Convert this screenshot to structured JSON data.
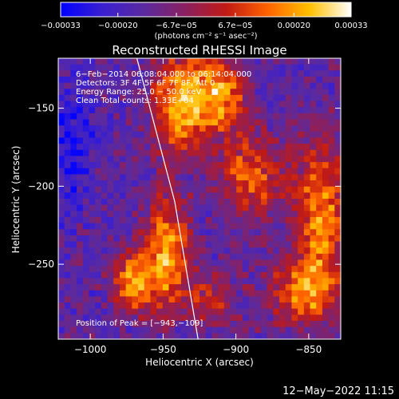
{
  "chart_data": {
    "type": "heatmap",
    "title": "Reconstructed RHESSI Image",
    "xlabel": "Heliocentric X (arcsec)",
    "ylabel": "Heliocentric Y (arcsec)",
    "xlim": [
      -1022,
      -828
    ],
    "ylim": [
      -298,
      -118
    ],
    "x_ticks": [
      -1000,
      -950,
      -900,
      -850
    ],
    "x_tick_labels": [
      "−1000",
      "−950",
      "−900",
      "−850"
    ],
    "y_ticks": [
      -150,
      -200,
      -250
    ],
    "y_tick_labels": [
      "−150",
      "−200",
      "−250"
    ],
    "colorbar": {
      "range": [
        -0.00033,
        0.00033
      ],
      "ticks": [
        -0.00033,
        -0.0002,
        -6.7e-05,
        6.7e-05,
        0.0002,
        0.00033
      ],
      "tick_labels": [
        "−0.00033",
        "−0.00020",
        "−6.7e−05",
        "6.7e−05",
        "0.00020",
        "0.00033"
      ],
      "units_label": "(photons cm⁻² s⁻¹ asec⁻²)",
      "colors": [
        "#0000ff",
        "#3a1fd0",
        "#5a2aa0",
        "#8a2060",
        "#c21a14",
        "#ff6400",
        "#ffc000",
        "#ffffff"
      ]
    },
    "annotations": [
      "6−Feb−2014 06:08:04.000 to 06:14:04.000",
      "Detectors: 3F 4F 5F 6F 7F 8F, Att 0",
      "Energy Range: 25.0 − 50.0 keV",
      "Clean    Total counts: 1.33E+04"
    ],
    "peak_label": "Position of Peak = [−943,−109]",
    "limb_line": {
      "x": [
        -968,
        -942,
        -926
      ],
      "y": [
        -118,
        -210,
        -298
      ]
    },
    "grid": false
  },
  "footer": {
    "date": "12−May−2022 11:15"
  }
}
